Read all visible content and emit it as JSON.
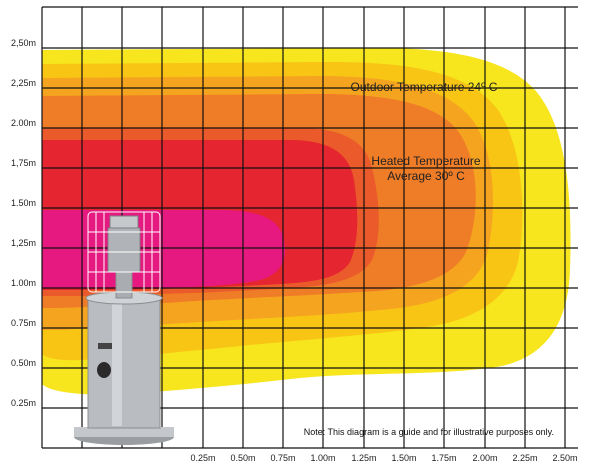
{
  "y_axis_labels": [
    "2,50m",
    "2,25m",
    "2.00m",
    "1,75m",
    "1.50m",
    "1,25m",
    "1.00m",
    "0.75m",
    "0.50m",
    "0.25m"
  ],
  "x_axis_labels": [
    "0.25m",
    "0.50m",
    "0.75m",
    "1.00m",
    "1.25m",
    "1.50m",
    "1.75m",
    "2.00m",
    "2.25m",
    "2.50m"
  ],
  "annotations": {
    "outdoor": "Outdoor Temperature 24º C",
    "heated_line1": "Heated Temperature",
    "heated_line2": "Average 30º C"
  },
  "note": "Note: This diagram is a guide and for illustrative purposes only.",
  "zone_colors": {
    "outer_yellow": "#f7e51e",
    "gold": "#f8c515",
    "orange_light": "#f5a41f",
    "orange": "#ef7c26",
    "orange_red": "#ea5a2a",
    "red": "#e52630",
    "magenta": "#e5197f",
    "grid": "#111111",
    "heater_body": "#b9bcc0"
  }
}
